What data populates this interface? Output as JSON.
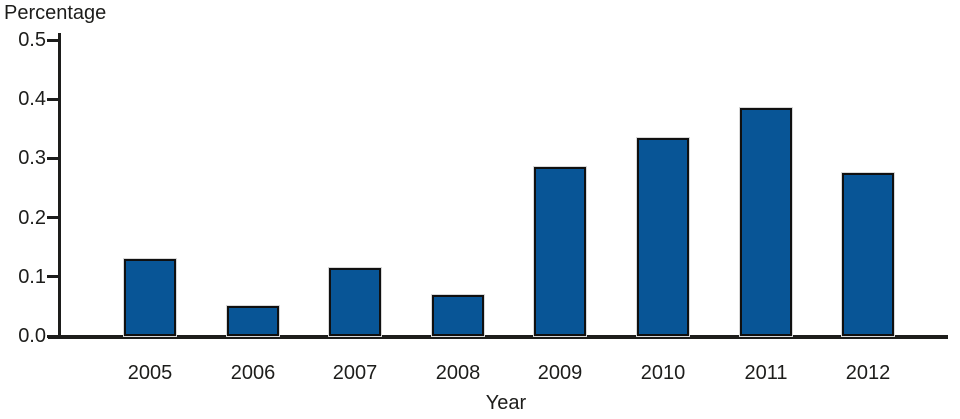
{
  "chart_data": {
    "type": "bar",
    "title": "",
    "categories": [
      "2005",
      "2006",
      "2007",
      "2008",
      "2009",
      "2010",
      "2011",
      "2012"
    ],
    "values": [
      0.13,
      0.05,
      0.115,
      0.07,
      0.285,
      0.335,
      0.385,
      0.275
    ],
    "xlabel": "Year",
    "ylabel": "Percentage",
    "ylim": [
      0,
      0.5
    ],
    "ytick_labels": [
      "0.0",
      "0.1",
      "0.2",
      "0.3",
      "0.4",
      "0.5"
    ],
    "grid": false,
    "legend": "none",
    "bar_color": "#085596",
    "bar_border_color": "#101010",
    "axis_color": "#1d1d1b",
    "text_color": "#1d1d1b",
    "background_color": "#ffffff"
  }
}
